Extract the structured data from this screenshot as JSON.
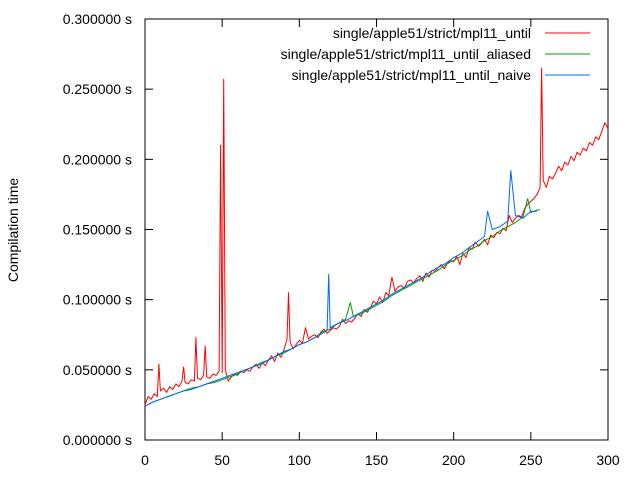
{
  "chart_data": {
    "type": "line",
    "title": "",
    "xlabel": "",
    "ylabel": "Compilation time",
    "xlim": [
      0,
      300
    ],
    "ylim": [
      0,
      0.3
    ],
    "x_ticks": [
      0,
      50,
      100,
      150,
      200,
      250,
      300
    ],
    "y_ticks": [
      0,
      0.05,
      0.1,
      0.15,
      0.2,
      0.25,
      0.3
    ],
    "x_tick_labels": [
      "0",
      "50",
      "100",
      "150",
      "200",
      "250",
      "300"
    ],
    "y_tick_labels": [
      "0.000000 s",
      "0.050000 s",
      "0.100000 s",
      "0.150000 s",
      "0.200000 s",
      "0.250000 s",
      "0.300000 s"
    ],
    "grid": false,
    "legend_position": "top-right",
    "series": [
      {
        "name": "single/apple51/strict/mpl11_until",
        "color": "#ff0000",
        "x": [
          0,
          2,
          4,
          6,
          8,
          9,
          10,
          12,
          14,
          16,
          18,
          20,
          22,
          24,
          25,
          26,
          28,
          30,
          32,
          33,
          34,
          36,
          38,
          39,
          40,
          42,
          44,
          46,
          48,
          49,
          50,
          51,
          52,
          54,
          56,
          58,
          60,
          62,
          64,
          66,
          68,
          70,
          72,
          74,
          76,
          78,
          80,
          82,
          84,
          86,
          88,
          90,
          92,
          93,
          94,
          96,
          98,
          100,
          102,
          104,
          106,
          108,
          110,
          112,
          114,
          116,
          118,
          120,
          122,
          124,
          126,
          128,
          130,
          132,
          134,
          136,
          138,
          140,
          142,
          144,
          146,
          148,
          150,
          152,
          154,
          156,
          158,
          160,
          162,
          164,
          166,
          168,
          170,
          172,
          174,
          176,
          178,
          180,
          182,
          184,
          186,
          188,
          190,
          192,
          194,
          196,
          198,
          200,
          202,
          204,
          206,
          208,
          210,
          212,
          214,
          216,
          218,
          220,
          222,
          224,
          226,
          228,
          230,
          232,
          234,
          236,
          238,
          240,
          242,
          244,
          246,
          248,
          250,
          252,
          254,
          256,
          257,
          258,
          260,
          262,
          264,
          266,
          268,
          270,
          272,
          274,
          276,
          278,
          280,
          282,
          284,
          286,
          288,
          290,
          292,
          294,
          296,
          298,
          300
        ],
        "y": [
          0.025,
          0.031,
          0.029,
          0.033,
          0.031,
          0.054,
          0.035,
          0.037,
          0.034,
          0.038,
          0.036,
          0.04,
          0.038,
          0.042,
          0.052,
          0.041,
          0.04,
          0.043,
          0.042,
          0.073,
          0.044,
          0.043,
          0.046,
          0.067,
          0.045,
          0.044,
          0.047,
          0.046,
          0.049,
          0.21,
          0.048,
          0.257,
          0.05,
          0.042,
          0.045,
          0.047,
          0.046,
          0.049,
          0.048,
          0.05,
          0.049,
          0.052,
          0.054,
          0.051,
          0.055,
          0.053,
          0.057,
          0.06,
          0.056,
          0.062,
          0.059,
          0.064,
          0.072,
          0.105,
          0.07,
          0.065,
          0.068,
          0.071,
          0.069,
          0.08,
          0.072,
          0.074,
          0.075,
          0.073,
          0.077,
          0.079,
          0.076,
          0.078,
          0.08,
          0.079,
          0.081,
          0.086,
          0.083,
          0.085,
          0.084,
          0.087,
          0.09,
          0.088,
          0.093,
          0.091,
          0.094,
          0.099,
          0.097,
          0.102,
          0.098,
          0.105,
          0.103,
          0.116,
          0.106,
          0.109,
          0.11,
          0.108,
          0.113,
          0.114,
          0.112,
          0.115,
          0.117,
          0.113,
          0.119,
          0.116,
          0.121,
          0.12,
          0.123,
          0.125,
          0.122,
          0.126,
          0.128,
          0.127,
          0.131,
          0.125,
          0.133,
          0.13,
          0.137,
          0.136,
          0.141,
          0.138,
          0.14,
          0.143,
          0.139,
          0.146,
          0.144,
          0.148,
          0.147,
          0.151,
          0.149,
          0.16,
          0.155,
          0.158,
          0.16,
          0.159,
          0.165,
          0.168,
          0.17,
          0.172,
          0.175,
          0.18,
          0.265,
          0.185,
          0.18,
          0.188,
          0.186,
          0.19,
          0.195,
          0.192,
          0.198,
          0.196,
          0.202,
          0.199,
          0.205,
          0.203,
          0.208,
          0.206,
          0.212,
          0.21,
          0.216,
          0.214,
          0.22,
          0.226,
          0.222
        ]
      },
      {
        "name": "single/apple51/strict/mpl11_until_aliased",
        "color": "#00a000",
        "x": [
          0,
          5,
          10,
          15,
          20,
          25,
          30,
          35,
          40,
          45,
          50,
          55,
          60,
          65,
          70,
          75,
          80,
          85,
          90,
          95,
          100,
          105,
          110,
          115,
          120,
          125,
          130,
          133,
          135,
          140,
          145,
          150,
          155,
          160,
          165,
          170,
          175,
          180,
          185,
          190,
          195,
          200,
          205,
          210,
          215,
          220,
          225,
          230,
          235,
          240,
          245,
          248,
          250,
          252,
          254,
          256
        ],
        "y": [
          0.024,
          0.027,
          0.029,
          0.031,
          0.033,
          0.035,
          0.037,
          0.038,
          0.04,
          0.041,
          0.043,
          0.045,
          0.047,
          0.05,
          0.052,
          0.055,
          0.057,
          0.06,
          0.062,
          0.065,
          0.068,
          0.07,
          0.073,
          0.077,
          0.079,
          0.083,
          0.086,
          0.098,
          0.088,
          0.09,
          0.093,
          0.096,
          0.099,
          0.103,
          0.106,
          0.109,
          0.112,
          0.115,
          0.118,
          0.121,
          0.125,
          0.128,
          0.131,
          0.135,
          0.138,
          0.142,
          0.145,
          0.149,
          0.152,
          0.155,
          0.159,
          0.172,
          0.162,
          0.163,
          0.164,
          0.164
        ]
      },
      {
        "name": "single/apple51/strict/mpl11_until_naive",
        "color": "#0066ff",
        "x": [
          0,
          5,
          10,
          15,
          20,
          25,
          30,
          35,
          40,
          45,
          50,
          55,
          60,
          65,
          70,
          75,
          80,
          85,
          90,
          95,
          100,
          105,
          110,
          115,
          118,
          119,
          120,
          125,
          130,
          135,
          140,
          145,
          150,
          155,
          160,
          165,
          170,
          175,
          180,
          185,
          190,
          195,
          200,
          205,
          210,
          215,
          220,
          222,
          225,
          230,
          235,
          237,
          240,
          245,
          250,
          254
        ],
        "y": [
          0.024,
          0.027,
          0.029,
          0.031,
          0.033,
          0.035,
          0.036,
          0.038,
          0.04,
          0.042,
          0.044,
          0.046,
          0.048,
          0.05,
          0.052,
          0.054,
          0.057,
          0.06,
          0.063,
          0.065,
          0.068,
          0.07,
          0.073,
          0.076,
          0.078,
          0.118,
          0.08,
          0.083,
          0.085,
          0.088,
          0.091,
          0.094,
          0.097,
          0.1,
          0.104,
          0.107,
          0.11,
          0.113,
          0.116,
          0.12,
          0.123,
          0.126,
          0.13,
          0.133,
          0.137,
          0.141,
          0.145,
          0.163,
          0.15,
          0.152,
          0.156,
          0.192,
          0.16,
          0.158,
          0.163,
          0.163
        ]
      }
    ]
  }
}
